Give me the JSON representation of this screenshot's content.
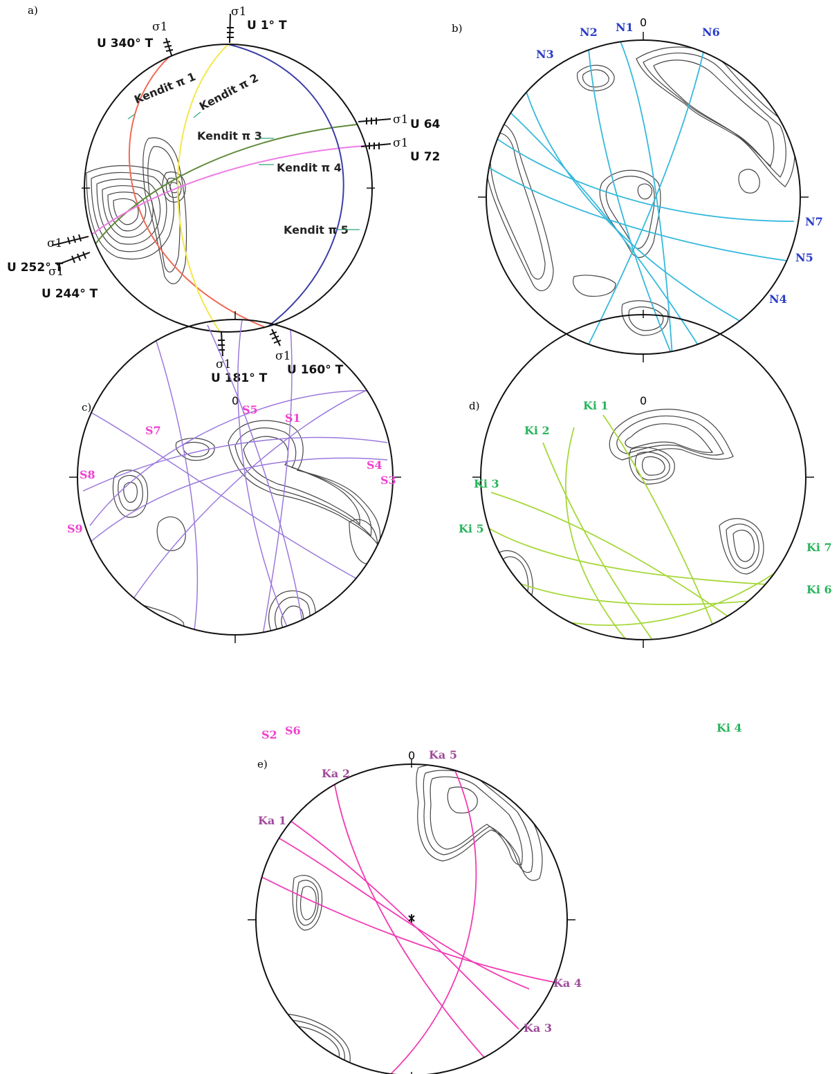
{
  "colors": {
    "frame": "#111111",
    "contour": "#444444",
    "kendit1": "#f06a55",
    "kendit2": "#f4e84a",
    "kendit3": "#5f8a3a",
    "kendit4": "#ee7be6",
    "kendit5": "#3c3ca8",
    "panel_b_lines": "#35b9dc",
    "panel_b_labels": "#2a3dc8",
    "panel_c_lines": "#9a78dc",
    "panel_c_labels": "#f040d0",
    "panel_d_lines": "#a6d83a",
    "panel_d_labels": "#28b45a",
    "panel_e_lines": "#f23ab4",
    "panel_e_labels": "#a04a9a"
  },
  "panels": {
    "a": {
      "label": "a)",
      "sigma_symbol": "σ1",
      "stress_labels": [
        "U 340° T",
        "U 1° T",
        "U 64",
        "U 72",
        "U 252° T",
        "U 244° T",
        "U 181° T",
        "U 160° T"
      ],
      "kendit_labels": [
        "Kendit π 1",
        "Kendit π 2",
        "Kendit π 3",
        "Kendit π 4",
        "Kendit π 5"
      ]
    },
    "b": {
      "label": "b)",
      "north": "0",
      "plane_labels": [
        "N2",
        "N1",
        "N6",
        "N3",
        "N7",
        "N5",
        "N4"
      ]
    },
    "c": {
      "label": "c)",
      "north": "0",
      "plane_labels": [
        "S5",
        "S1",
        "S7",
        "S4",
        "S8",
        "S3",
        "S9",
        "S2",
        "S6"
      ]
    },
    "d": {
      "label": "d)",
      "north": "0",
      "plane_labels": [
        "Ki 1",
        "Ki 2",
        "Ki 3",
        "Ki 5",
        "Ki 7",
        "Ki 6",
        "Ki 4"
      ]
    },
    "e": {
      "label": "e)",
      "north": "0",
      "plane_labels": [
        "Ka 5",
        "Ka 2",
        "Ka 1",
        "Ka 4",
        "Ka 3"
      ]
    }
  }
}
